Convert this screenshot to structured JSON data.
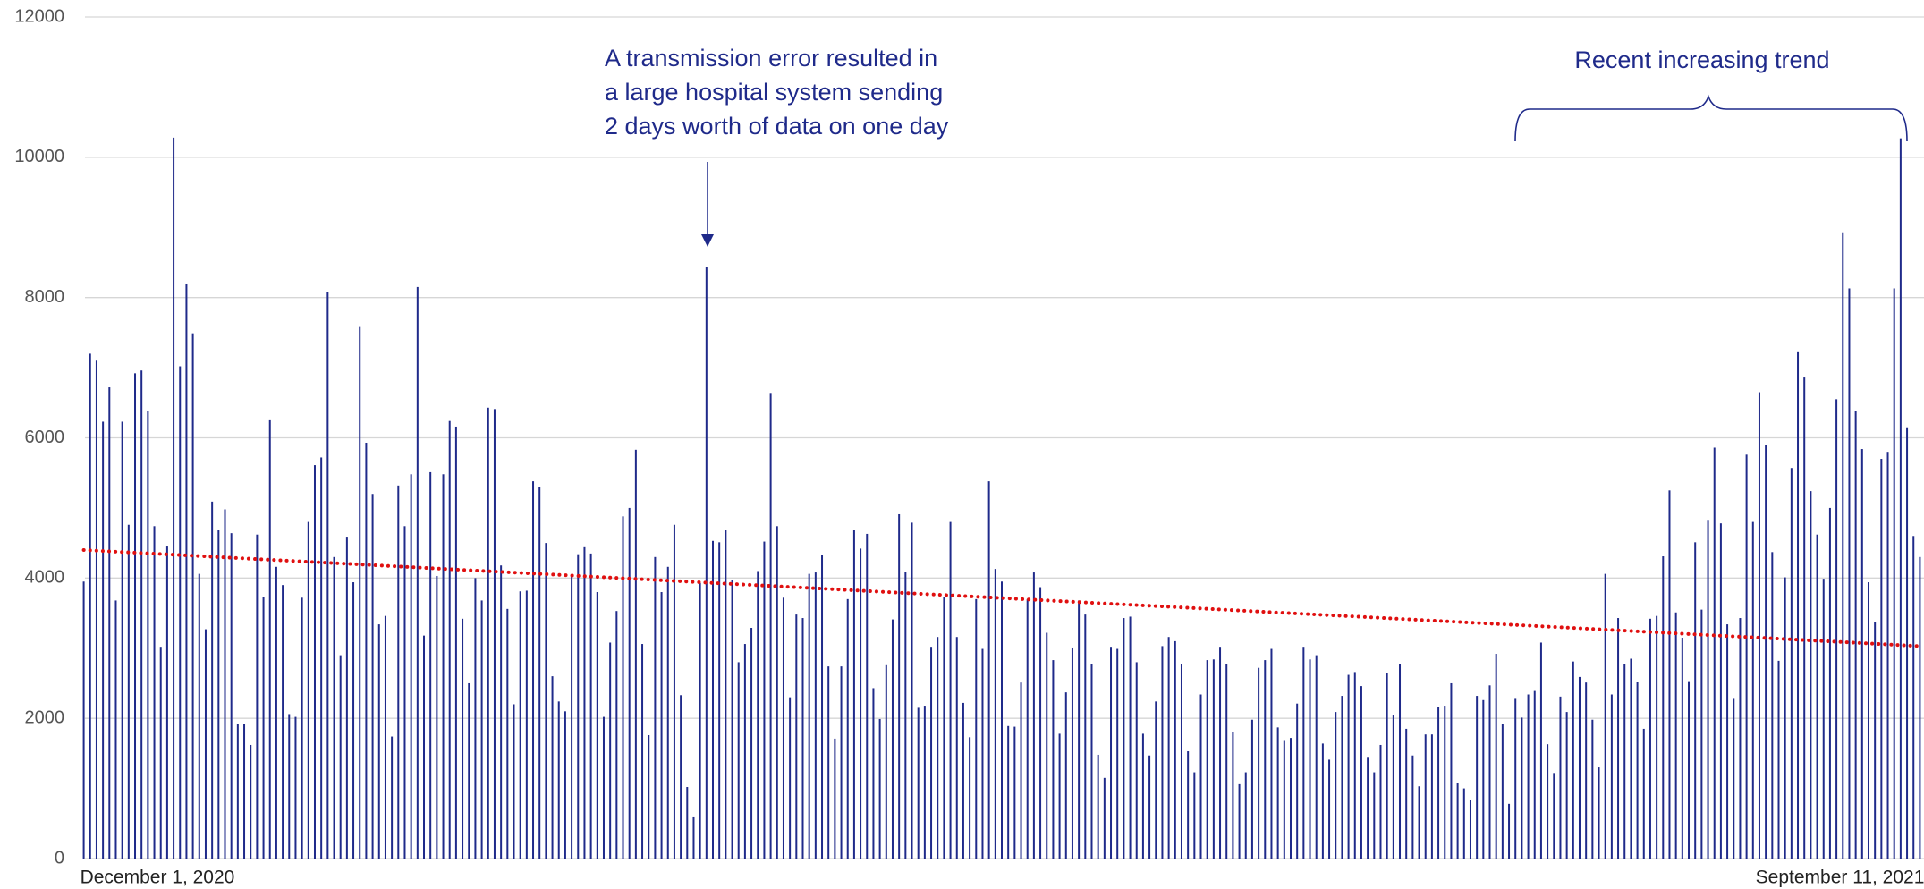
{
  "chart_data": {
    "type": "bar",
    "color": "#1f2a8a",
    "ylim": [
      0,
      12000
    ],
    "yticks": [
      0,
      2000,
      4000,
      6000,
      8000,
      10000,
      12000
    ],
    "grid": true,
    "annotations": [
      {
        "lines": [
          "A transmission error resulted in",
          "a large hospital system sending",
          "2 days worth of data on one day"
        ]
      },
      {
        "lines": [
          "Recent increasing trend"
        ]
      }
    ],
    "trend": {
      "start": 4400,
      "end": 3030,
      "color": "#e01010"
    },
    "categories": [
      "December 1, 2020",
      null,
      null,
      null,
      null,
      null,
      null,
      null,
      null,
      null,
      null,
      null,
      null,
      null,
      null,
      null,
      null,
      null,
      null,
      null,
      null,
      null,
      null,
      null,
      null,
      null,
      null,
      null,
      null,
      null,
      null,
      null,
      null,
      null,
      null,
      null,
      null,
      null,
      null,
      null,
      null,
      null,
      null,
      null,
      null,
      null,
      null,
      null,
      null,
      null,
      null,
      null,
      null,
      null,
      null,
      null,
      null,
      null,
      null,
      null,
      null,
      null,
      null,
      null,
      null,
      null,
      null,
      null,
      null,
      null,
      null,
      null,
      null,
      null,
      null,
      null,
      null,
      null,
      null,
      null,
      null,
      null,
      null,
      null,
      null,
      null,
      null,
      null,
      null,
      null,
      null,
      null,
      null,
      null,
      null,
      null,
      null,
      null,
      null,
      null,
      null,
      null,
      null,
      null,
      null,
      null,
      null,
      null,
      null,
      null,
      null,
      null,
      null,
      null,
      null,
      null,
      null,
      null,
      null,
      null,
      null,
      null,
      null,
      null,
      null,
      null,
      null,
      null,
      null,
      null,
      null,
      null,
      null,
      null,
      null,
      null,
      null,
      null,
      null,
      null,
      null,
      null,
      null,
      null,
      null,
      null,
      null,
      null,
      null,
      null,
      null,
      null,
      null,
      null,
      null,
      null,
      null,
      null,
      null,
      null,
      null,
      null,
      null,
      null,
      null,
      null,
      null,
      null,
      null,
      null,
      null,
      null,
      null,
      null,
      null,
      null,
      null,
      null,
      null,
      null,
      null,
      null,
      null,
      null,
      null,
      null,
      null,
      null,
      null,
      null,
      null,
      null,
      null,
      null,
      null,
      null,
      null,
      null,
      null,
      null,
      null,
      null,
      null,
      null,
      null,
      null,
      null,
      null,
      null,
      null,
      null,
      null,
      null,
      null,
      null,
      null,
      null,
      null,
      null,
      null,
      null,
      null,
      null,
      null,
      null,
      null,
      null,
      null,
      null,
      null,
      null,
      null,
      null,
      null,
      null,
      null,
      null,
      null,
      null,
      null,
      null,
      null,
      null,
      null,
      null,
      null,
      null,
      null,
      null,
      null,
      null,
      null,
      null,
      null,
      null,
      null,
      null,
      null,
      null,
      null,
      null,
      null,
      null,
      null,
      null,
      null,
      null,
      null,
      null,
      null,
      null,
      null,
      null,
      null,
      null,
      null,
      null,
      null,
      null,
      null,
      null,
      null,
      null,
      null,
      null,
      null,
      "September 11, 2021"
    ],
    "values": [
      3950,
      7200,
      7100,
      6230,
      6720,
      3680,
      6230,
      4760,
      6920,
      6960,
      6380,
      4740,
      3020,
      4450,
      10280,
      7020,
      8200,
      7490,
      4060,
      3270,
      5090,
      4680,
      4980,
      4640,
      1920,
      1920,
      1620,
      4620,
      3730,
      6250,
      4160,
      3900,
      2060,
      2020,
      3720,
      4800,
      5610,
      5720,
      8080,
      4300,
      2900,
      4590,
      3940,
      7580,
      5930,
      5200,
      3340,
      3460,
      1740,
      5320,
      4740,
      5480,
      8150,
      3180,
      5510,
      4030,
      5480,
      6240,
      6160,
      3420,
      2500,
      4000,
      3680,
      6430,
      6410,
      4180,
      3560,
      2200,
      3810,
      3820,
      5380,
      5300,
      4500,
      2600,
      2240,
      2100,
      4020,
      4340,
      4440,
      4350,
      3800,
      2020,
      3080,
      3530,
      4880,
      5000,
      5830,
      3060,
      1760,
      4300,
      3800,
      4160,
      4760,
      2330,
      1020,
      600,
      3930,
      8440,
      4530,
      4510,
      4680,
      3970,
      2800,
      3060,
      3290,
      4100,
      4520,
      6640,
      4740,
      3720,
      2300,
      3480,
      3430,
      4060,
      4080,
      4330,
      2740,
      1710,
      2740,
      3700,
      4680,
      4420,
      4630,
      2430,
      1990,
      2770,
      3410,
      4910,
      4090,
      4790,
      2150,
      2180,
      3020,
      3160,
      3730,
      4800,
      3160,
      2220,
      1730,
      3700,
      2990,
      5380,
      4130,
      3950,
      1890,
      1880,
      2510,
      3700,
      4080,
      3870,
      3220,
      2830,
      1780,
      2370,
      3010,
      3680,
      3480,
      2780,
      1480,
      1150,
      3020,
      2990,
      3430,
      3450,
      2800,
      1780,
      1470,
      2240,
      3030,
      3160,
      3100,
      2780,
      1530,
      1230,
      2340,
      2830,
      2840,
      3020,
      2780,
      1800,
      1060,
      1230,
      1980,
      2720,
      2830,
      2990,
      1870,
      1690,
      1720,
      2210,
      3020,
      2840,
      2900,
      1640,
      1410,
      2090,
      2320,
      2620,
      2660,
      2460,
      1450,
      1230,
      1620,
      2640,
      2040,
      2780,
      1850,
      1470,
      1030,
      1770,
      1770,
      2160,
      2180,
      2500,
      1080,
      1000,
      840,
      2320,
      2260,
      2470,
      2920,
      1920,
      780,
      2290,
      2010,
      2340,
      2390,
      3080,
      1630,
      1220,
      2310,
      2090,
      2810,
      2590,
      2510,
      1980,
      1300,
      4060,
      2340,
      3430,
      2780,
      2850,
      2520,
      1850,
      3420,
      3460,
      4310,
      5250,
      3510,
      3150,
      2530,
      4510,
      3550,
      4830,
      5860,
      4780,
      3340,
      2290,
      3430,
      5760,
      4800,
      6650,
      5900,
      4370,
      2820,
      4010,
      5570,
      7220,
      6860,
      5240,
      4620,
      3990,
      5000,
      6550,
      8930,
      8130,
      6380,
      5840,
      3940,
      3370,
      5700,
      5800,
      8130,
      10270,
      6150,
      4600,
      4300
    ]
  }
}
